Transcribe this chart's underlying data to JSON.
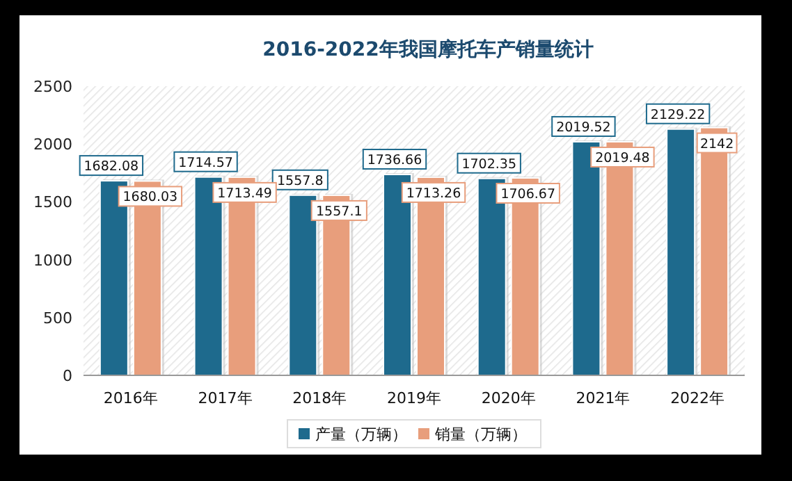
{
  "chart_data": {
    "type": "bar",
    "title": "2016-2022年我国摩托车产销量统计",
    "categories": [
      "2016年",
      "2017年",
      "2018年",
      "2019年",
      "2020年",
      "2021年",
      "2022年"
    ],
    "series": [
      {
        "name": "产量（万辆）",
        "color": "#1e6a8d",
        "values": [
          1682.08,
          1714.57,
          1557.8,
          1736.66,
          1702.35,
          2019.52,
          2129.22
        ]
      },
      {
        "name": "销量（万辆）",
        "color": "#e89e7c",
        "values": [
          1680.03,
          1713.49,
          1557.1,
          1713.26,
          1706.67,
          2019.48,
          2142
        ]
      }
    ],
    "ylim": [
      0,
      2500
    ],
    "yticks": [
      0,
      500,
      1000,
      1500,
      2000,
      2500
    ],
    "data_labels": true,
    "legend": "bottom",
    "grid": false
  }
}
